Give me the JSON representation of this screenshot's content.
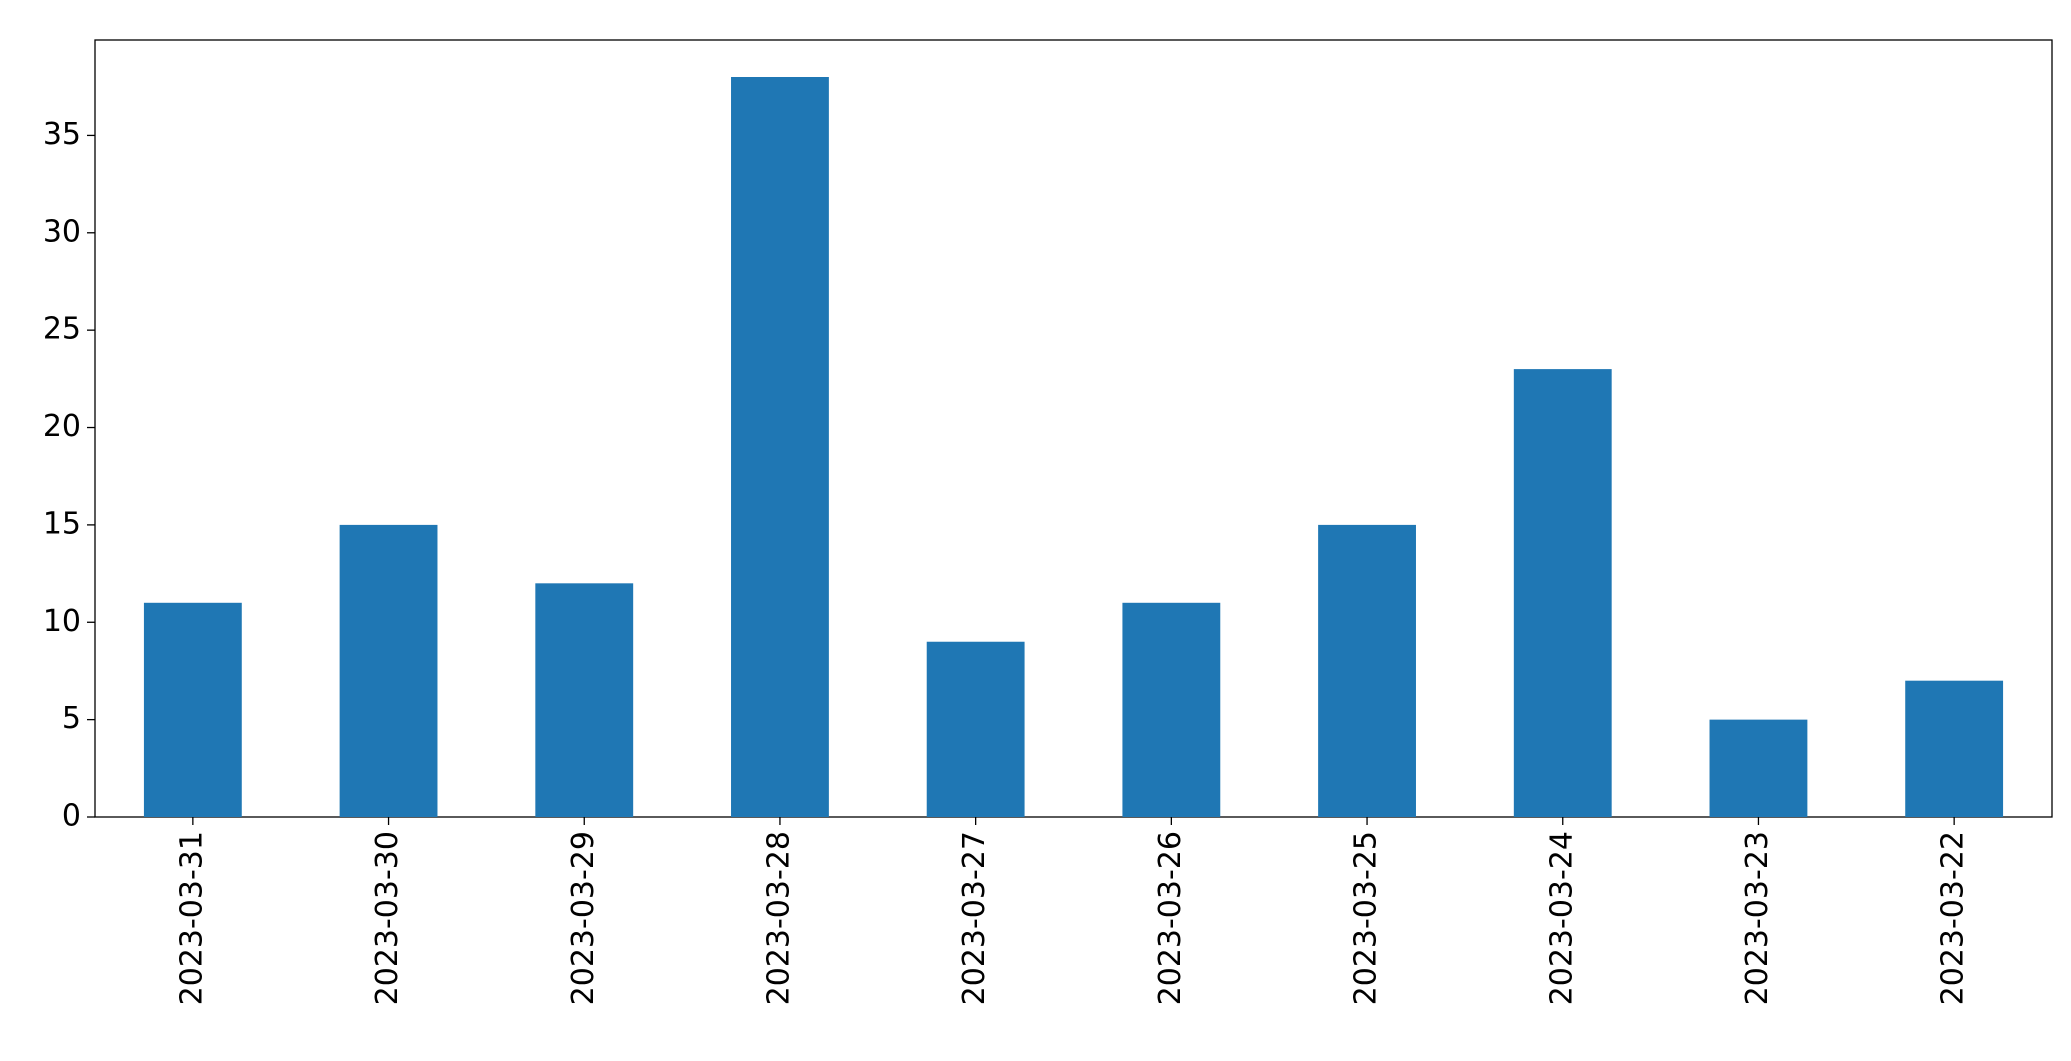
{
  "chart_data": {
    "type": "bar",
    "categories": [
      "2023-03-31",
      "2023-03-30",
      "2023-03-29",
      "2023-03-28",
      "2023-03-27",
      "2023-03-26",
      "2023-03-25",
      "2023-03-24",
      "2023-03-23",
      "2023-03-22"
    ],
    "values": [
      11,
      15,
      12,
      38,
      9,
      11,
      15,
      23,
      5,
      7
    ],
    "color": "#1f77b4",
    "ylim": [
      0,
      39.9
    ],
    "yticks": [
      0,
      5,
      10,
      15,
      20,
      25,
      30,
      35
    ],
    "grid": false
  }
}
